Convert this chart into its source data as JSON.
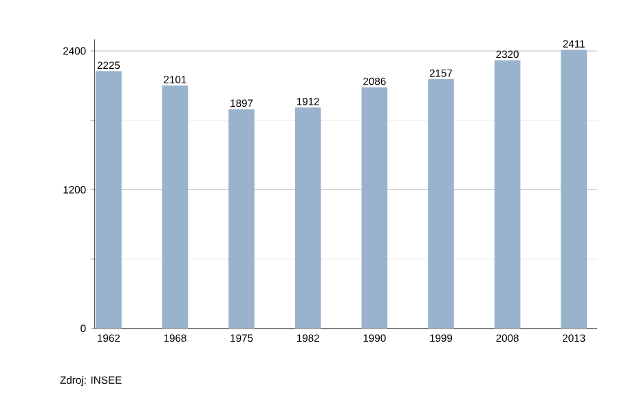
{
  "chart_data": {
    "type": "bar",
    "categories": [
      "1962",
      "1968",
      "1975",
      "1982",
      "1990",
      "1999",
      "2008",
      "2013"
    ],
    "values": [
      2225,
      2101,
      1897,
      1912,
      2086,
      2157,
      2320,
      2411
    ],
    "color": "#9ab3cd",
    "ylim": [
      0,
      2500
    ],
    "yticks": [
      0,
      {
        "value": 600,
        "label": null
      },
      1200,
      {
        "value": 1800,
        "label": null
      },
      2400
    ],
    "grid": "y",
    "data_labels": true,
    "annotations": [
      "Zdroj: INSEE"
    ]
  }
}
